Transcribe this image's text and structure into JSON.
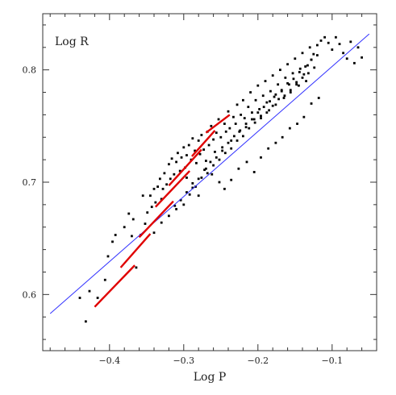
{
  "chart_data": {
    "type": "scatter",
    "title": "",
    "xlabel": "Log P",
    "ylabel": "Log R",
    "xlim": [
      -0.49,
      -0.04
    ],
    "ylim": [
      0.55,
      0.85
    ],
    "xticks": [
      -0.4,
      -0.3,
      -0.2,
      -0.1
    ],
    "xtick_labels": [
      "−0.4",
      "−0.3",
      "−0.2",
      "−0.1"
    ],
    "yticks": [
      0.6,
      0.7,
      0.8
    ],
    "ytick_labels": [
      "0.6",
      "0.7",
      "0.8"
    ],
    "grid": false,
    "colors": {
      "points": "#000000",
      "fit_line": "#3333ff",
      "segments": "#e00000",
      "axes": "#333333"
    },
    "fit_line": {
      "x": [
        -0.48,
        -0.05
      ],
      "y": [
        0.583,
        0.832
      ]
    },
    "segments": [
      {
        "x": [
          -0.42,
          -0.366
        ],
        "y": [
          0.589,
          0.626
        ]
      },
      {
        "x": [
          -0.385,
          -0.345
        ],
        "y": [
          0.624,
          0.654
        ]
      },
      {
        "x": [
          -0.36,
          -0.314
        ],
        "y": [
          0.651,
          0.683
        ]
      },
      {
        "x": [
          -0.338,
          -0.292
        ],
        "y": [
          0.678,
          0.71
        ]
      },
      {
        "x": [
          -0.32,
          -0.276
        ],
        "y": [
          0.697,
          0.729
        ]
      },
      {
        "x": [
          -0.289,
          -0.258
        ],
        "y": [
          0.723,
          0.746
        ]
      },
      {
        "x": [
          -0.27,
          -0.238
        ],
        "y": [
          0.744,
          0.76
        ]
      }
    ],
    "points": {
      "x": [
        -0.432,
        -0.427,
        -0.44,
        -0.416,
        -0.406,
        -0.402,
        -0.392,
        -0.396,
        -0.38,
        -0.374,
        -0.368,
        -0.37,
        -0.364,
        -0.358,
        -0.355,
        -0.352,
        -0.349,
        -0.345,
        -0.343,
        -0.34,
        -0.338,
        -0.335,
        -0.332,
        -0.33,
        -0.328,
        -0.326,
        -0.323,
        -0.32,
        -0.318,
        -0.316,
        -0.313,
        -0.31,
        -0.308,
        -0.305,
        -0.303,
        -0.3,
        -0.298,
        -0.296,
        -0.293,
        -0.29,
        -0.288,
        -0.285,
        -0.283,
        -0.28,
        -0.278,
        -0.276,
        -0.273,
        -0.27,
        -0.268,
        -0.266,
        -0.263,
        -0.26,
        -0.258,
        -0.256,
        -0.253,
        -0.25,
        -0.248,
        -0.245,
        -0.243,
        -0.24,
        -0.238,
        -0.236,
        -0.233,
        -0.23,
        -0.228,
        -0.225,
        -0.223,
        -0.22,
        -0.218,
        -0.216,
        -0.213,
        -0.21,
        -0.208,
        -0.205,
        -0.203,
        -0.2,
        -0.198,
        -0.196,
        -0.193,
        -0.19,
        -0.188,
        -0.185,
        -0.183,
        -0.18,
        -0.178,
        -0.176,
        -0.173,
        -0.17,
        -0.168,
        -0.165,
        -0.163,
        -0.16,
        -0.158,
        -0.156,
        -0.153,
        -0.15,
        -0.148,
        -0.145,
        -0.143,
        -0.14,
        -0.138,
        -0.135,
        -0.133,
        -0.13,
        -0.128,
        -0.125,
        -0.12,
        -0.115,
        -0.11,
        -0.105,
        -0.1,
        -0.095,
        -0.09,
        -0.085,
        -0.08,
        -0.075,
        -0.07,
        -0.065,
        -0.06,
        -0.296,
        -0.288,
        -0.27,
        -0.28,
        -0.252,
        -0.262,
        -0.245,
        -0.236,
        -0.226,
        -0.215,
        -0.205,
        -0.196,
        -0.186,
        -0.176,
        -0.167,
        -0.157,
        -0.147,
        -0.138,
        -0.128,
        -0.118,
        -0.31,
        -0.3,
        -0.292,
        -0.284,
        -0.276,
        -0.268,
        -0.26,
        -0.252,
        -0.244,
        -0.236,
        -0.228,
        -0.22,
        -0.212,
        -0.204,
        -0.196,
        -0.188,
        -0.18,
        -0.172,
        -0.164,
        -0.156,
        -0.148,
        -0.14,
        -0.132,
        -0.124,
        -0.34,
        -0.33,
        -0.32,
        -0.312,
        -0.304,
        -0.296,
        -0.288,
        -0.28,
        -0.272,
        -0.264,
        -0.256,
        -0.248,
        -0.24,
        -0.232,
        -0.224,
        -0.216,
        -0.208,
        -0.2,
        -0.192,
        -0.184,
        -0.176,
        -0.168,
        -0.16,
        -0.152,
        -0.144,
        -0.136,
        -0.128,
        -0.12
      ],
      "y": [
        0.576,
        0.603,
        0.597,
        0.597,
        0.613,
        0.634,
        0.653,
        0.647,
        0.66,
        0.672,
        0.667,
        0.652,
        0.624,
        0.653,
        0.688,
        0.663,
        0.673,
        0.688,
        0.678,
        0.694,
        0.682,
        0.696,
        0.703,
        0.685,
        0.694,
        0.708,
        0.698,
        0.716,
        0.703,
        0.721,
        0.707,
        0.718,
        0.726,
        0.71,
        0.722,
        0.731,
        0.713,
        0.724,
        0.733,
        0.72,
        0.739,
        0.728,
        0.717,
        0.737,
        0.725,
        0.742,
        0.729,
        0.719,
        0.745,
        0.733,
        0.75,
        0.738,
        0.727,
        0.744,
        0.756,
        0.74,
        0.731,
        0.752,
        0.745,
        0.763,
        0.748,
        0.737,
        0.758,
        0.752,
        0.769,
        0.745,
        0.76,
        0.773,
        0.757,
        0.749,
        0.767,
        0.78,
        0.762,
        0.756,
        0.773,
        0.786,
        0.765,
        0.759,
        0.777,
        0.79,
        0.771,
        0.764,
        0.781,
        0.795,
        0.776,
        0.769,
        0.787,
        0.8,
        0.781,
        0.775,
        0.793,
        0.805,
        0.787,
        0.78,
        0.797,
        0.81,
        0.789,
        0.786,
        0.801,
        0.815,
        0.796,
        0.79,
        0.804,
        0.82,
        0.809,
        0.814,
        0.822,
        0.826,
        0.829,
        0.824,
        0.818,
        0.829,
        0.823,
        0.815,
        0.81,
        0.825,
        0.806,
        0.82,
        0.811,
        0.704,
        0.695,
        0.712,
        0.688,
        0.7,
        0.707,
        0.694,
        0.702,
        0.712,
        0.718,
        0.709,
        0.722,
        0.73,
        0.735,
        0.74,
        0.748,
        0.752,
        0.758,
        0.77,
        0.775,
        0.676,
        0.68,
        0.689,
        0.696,
        0.704,
        0.708,
        0.715,
        0.72,
        0.726,
        0.73,
        0.737,
        0.741,
        0.748,
        0.753,
        0.757,
        0.762,
        0.768,
        0.774,
        0.777,
        0.782,
        0.787,
        0.793,
        0.797,
        0.802,
        0.655,
        0.664,
        0.67,
        0.679,
        0.684,
        0.691,
        0.699,
        0.703,
        0.711,
        0.718,
        0.722,
        0.728,
        0.735,
        0.741,
        0.746,
        0.752,
        0.756,
        0.762,
        0.767,
        0.772,
        0.778,
        0.782,
        0.788,
        0.792,
        0.798,
        0.803,
        0.809,
        0.813
      ]
    },
    "annotations": [
      {
        "text": "Log R",
        "position": "top-left inside plot"
      }
    ]
  }
}
